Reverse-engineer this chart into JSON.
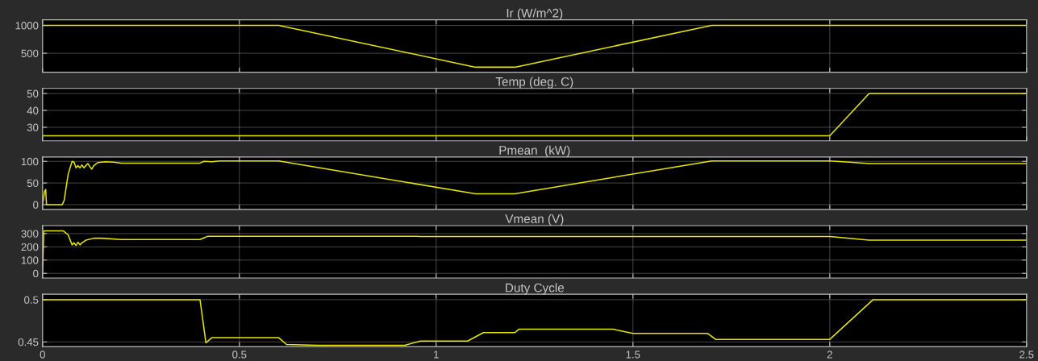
{
  "chart_data": [
    {
      "type": "line",
      "title": "Ir (W/m^2)",
      "x": [
        0,
        0.6,
        1.1,
        1.2,
        1.7,
        2.5
      ],
      "series": [
        {
          "color": "#e6e600",
          "values": [
            1000,
            1000,
            250,
            250,
            1000,
            1000
          ]
        }
      ],
      "xlim": [
        0,
        2.5
      ],
      "xticks": [
        0,
        0.5,
        1,
        1.5,
        2,
        2.5
      ],
      "ylim": [
        160,
        1100
      ],
      "yticks": [
        500,
        1000
      ],
      "grid": true,
      "tick_labels": "y"
    },
    {
      "type": "line",
      "title": "Temp (deg. C)",
      "x": [
        0,
        2.0,
        2.1,
        2.5
      ],
      "series": [
        {
          "color": "#e6e600",
          "values": [
            25,
            25,
            50,
            50
          ]
        }
      ],
      "xlim": [
        0,
        2.5
      ],
      "xticks": [
        0,
        0.5,
        1,
        1.5,
        2,
        2.5
      ],
      "ylim": [
        22,
        53
      ],
      "yticks": [
        30,
        40,
        50
      ],
      "grid": true,
      "tick_labels": "y"
    },
    {
      "type": "line",
      "title": "Pmean  (kW)",
      "x": [
        0,
        0.005,
        0.008,
        0.01,
        0.05,
        0.055,
        0.06,
        0.065,
        0.07,
        0.075,
        0.08,
        0.085,
        0.09,
        0.095,
        0.1,
        0.105,
        0.11,
        0.115,
        0.12,
        0.125,
        0.13,
        0.14,
        0.16,
        0.18,
        0.2,
        0.4,
        0.41,
        0.43,
        0.45,
        0.6,
        1.1,
        1.2,
        1.7,
        2.0,
        2.05,
        2.1,
        2.5
      ],
      "series": [
        {
          "color": "#e6e600",
          "values": [
            0,
            30,
            35,
            0,
            0,
            10,
            40,
            70,
            85,
            100,
            98,
            85,
            90,
            85,
            92,
            85,
            90,
            95,
            88,
            82,
            90,
            97,
            99,
            98,
            96,
            96,
            100,
            99,
            101,
            101,
            25,
            25,
            101,
            101,
            98,
            95,
            95
          ]
        }
      ],
      "xlim": [
        0,
        2.5
      ],
      "xticks": [
        0,
        0.5,
        1,
        1.5,
        2,
        2.5
      ],
      "ylim": [
        -11,
        110
      ],
      "yticks": [
        0,
        50,
        100
      ],
      "grid": true,
      "tick_labels": "y"
    },
    {
      "type": "line",
      "title": "Vmean (V)",
      "x": [
        0,
        0.003,
        0.053,
        0.065,
        0.075,
        0.08,
        0.085,
        0.09,
        0.095,
        0.1,
        0.11,
        0.13,
        0.15,
        0.2,
        0.4,
        0.42,
        0.95,
        0.96,
        2.0,
        2.1,
        2.5
      ],
      "series": [
        {
          "color": "#e6e600",
          "values": [
            0,
            320,
            320,
            290,
            215,
            230,
            210,
            235,
            215,
            230,
            250,
            265,
            265,
            255,
            255,
            280,
            280,
            278,
            278,
            250,
            250
          ]
        }
      ],
      "xlim": [
        0,
        2.5
      ],
      "xticks": [
        0,
        0.5,
        1,
        1.5,
        2,
        2.5
      ],
      "ylim": [
        -35,
        360
      ],
      "yticks": [
        0,
        100,
        200,
        300
      ],
      "grid": true,
      "tick_labels": "y"
    },
    {
      "type": "line",
      "title": "Duty Cycle",
      "x": [
        0,
        0.4,
        0.415,
        0.43,
        0.6,
        0.62,
        0.7,
        0.92,
        0.96,
        1.08,
        1.12,
        1.2,
        1.21,
        1.45,
        1.5,
        1.69,
        1.71,
        2.0,
        2.11,
        2.5
      ],
      "series": [
        {
          "color": "#e6e600",
          "values": [
            0.5,
            0.5,
            0.449,
            0.455,
            0.455,
            0.447,
            0.446,
            0.446,
            0.451,
            0.451,
            0.461,
            0.461,
            0.465,
            0.465,
            0.46,
            0.46,
            0.453,
            0.453,
            0.5,
            0.5
          ]
        }
      ],
      "xlim": [
        0,
        2.5
      ],
      "xticks": [
        0,
        0.5,
        1,
        1.5,
        2,
        2.5
      ],
      "ylim": [
        0.4445,
        0.5065
      ],
      "yticks": [
        0.45,
        0.5
      ],
      "grid": true
    }
  ]
}
